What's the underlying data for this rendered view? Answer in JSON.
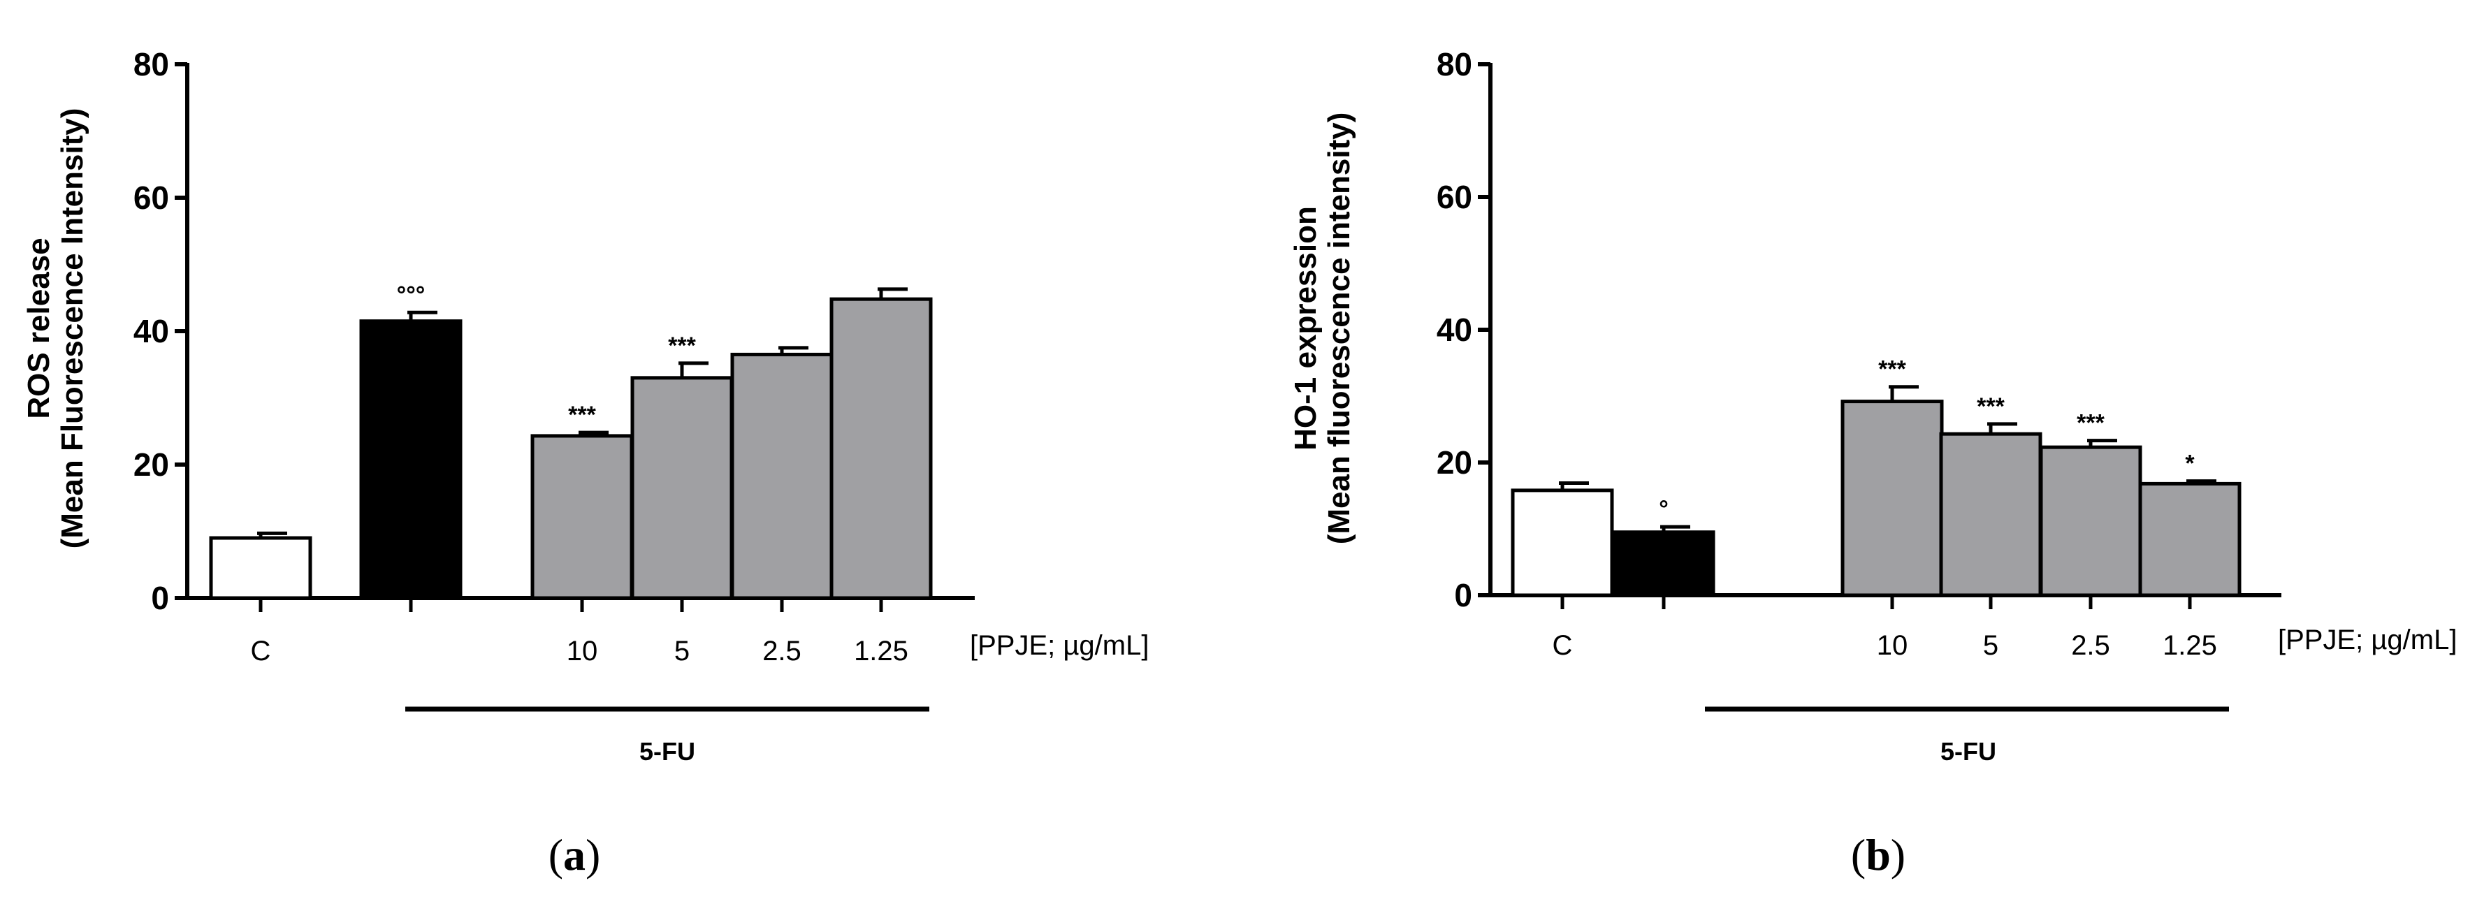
{
  "chart_data": [
    {
      "type": "bar",
      "panel": "a",
      "ylabel_line1": "ROS release",
      "ylabel_line2": "(Mean Fluorescence Intensity)",
      "ylim": [
        0,
        80
      ],
      "yticks": [
        0,
        20,
        40,
        60,
        80
      ],
      "categories": [
        "C",
        "",
        "10",
        "5",
        "2.5",
        "1.25"
      ],
      "values": [
        9,
        41.5,
        24.3,
        33,
        36.5,
        44.8
      ],
      "errors": [
        0.7,
        1.3,
        0.5,
        2.2,
        1.0,
        1.5
      ],
      "significance": [
        "",
        "°°°",
        "***",
        "***",
        "",
        ""
      ],
      "fill_colors": [
        "#ffffff",
        "#000000",
        "#a0a0a3",
        "#a0a0a3",
        "#a0a0a3",
        "#a0a0a3"
      ],
      "unit_label": "[PPJE; µg/mL]",
      "group_label": "5-FU"
    },
    {
      "type": "bar",
      "panel": "b",
      "ylabel_line1": "HO-1 expression",
      "ylabel_line2": "(Mean fluorescence intensity)",
      "ylim": [
        0,
        80
      ],
      "yticks": [
        0,
        20,
        40,
        60,
        80
      ],
      "categories": [
        "C",
        "",
        "10",
        "5",
        "2.5",
        "1.25"
      ],
      "values": [
        15.8,
        9.5,
        29.2,
        24.3,
        22.3,
        16.8
      ],
      "errors": [
        1.1,
        0.8,
        2.2,
        1.5,
        1.0,
        0.4
      ],
      "significance": [
        "",
        "°",
        "***",
        "***",
        "***",
        "*"
      ],
      "fill_colors": [
        "#ffffff",
        "#000000",
        "#a0a0a3",
        "#a0a0a3",
        "#a0a0a3",
        "#a0a0a3"
      ],
      "unit_label": "[PPJE; µg/mL]",
      "group_label": "5-FU"
    }
  ],
  "panel_labels": [
    "a",
    "b"
  ]
}
